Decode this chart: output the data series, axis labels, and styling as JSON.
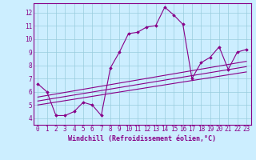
{
  "xlabel": "Windchill (Refroidissement éolien,°C)",
  "background_color": "#cceeff",
  "grid_color": "#99ccdd",
  "line_color": "#880088",
  "spine_color": "#880088",
  "xlim": [
    -0.5,
    23.5
  ],
  "ylim": [
    3.5,
    12.7
  ],
  "yticks": [
    4,
    5,
    6,
    7,
    8,
    9,
    10,
    11,
    12
  ],
  "xticks": [
    0,
    1,
    2,
    3,
    4,
    5,
    6,
    7,
    8,
    9,
    10,
    11,
    12,
    13,
    14,
    15,
    16,
    17,
    18,
    19,
    20,
    21,
    22,
    23
  ],
  "series_main": {
    "x": [
      0,
      1,
      2,
      3,
      4,
      5,
      6,
      7,
      8,
      9,
      10,
      11,
      12,
      13,
      14,
      15,
      16,
      17,
      18,
      19,
      20,
      21,
      22,
      23
    ],
    "y": [
      6.6,
      6.0,
      4.2,
      4.2,
      4.5,
      5.2,
      5.0,
      4.2,
      7.8,
      9.0,
      10.4,
      10.5,
      10.9,
      11.0,
      12.4,
      11.8,
      11.1,
      7.0,
      8.2,
      8.6,
      9.4,
      7.7,
      9.0,
      9.2
    ]
  },
  "series_lines": [
    {
      "x": [
        0,
        23
      ],
      "y": [
        5.0,
        7.5
      ]
    },
    {
      "x": [
        0,
        23
      ],
      "y": [
        5.3,
        7.9
      ]
    },
    {
      "x": [
        0,
        23
      ],
      "y": [
        5.6,
        8.3
      ]
    }
  ],
  "tick_fontsize": 5.5,
  "xlabel_fontsize": 6.0
}
